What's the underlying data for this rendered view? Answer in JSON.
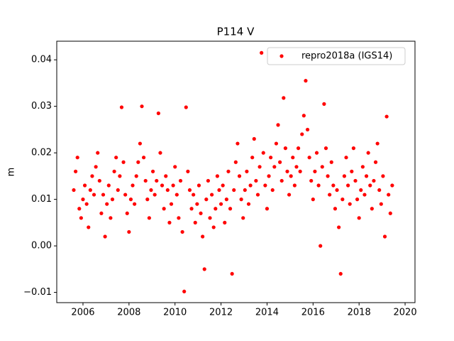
{
  "chart_data": {
    "type": "scatter",
    "title": "P114 V",
    "y_label": "m",
    "x": [
      2005.6,
      2005.68,
      2005.76,
      2005.84,
      2005.92,
      2006.0,
      2006.08,
      2006.16,
      2006.24,
      2006.32,
      2006.4,
      2006.48,
      2006.56,
      2006.64,
      2006.72,
      2006.8,
      2006.88,
      2006.96,
      2007.04,
      2007.12,
      2007.2,
      2007.28,
      2007.36,
      2007.44,
      2007.52,
      2007.6,
      2007.68,
      2007.76,
      2007.84,
      2007.92,
      2008.0,
      2008.08,
      2008.16,
      2008.24,
      2008.32,
      2008.4,
      2008.48,
      2008.56,
      2008.64,
      2008.72,
      2008.8,
      2008.88,
      2008.96,
      2009.04,
      2009.12,
      2009.2,
      2009.28,
      2009.36,
      2009.44,
      2009.52,
      2009.6,
      2009.68,
      2009.76,
      2009.84,
      2009.92,
      2010.0,
      2010.08,
      2010.16,
      2010.24,
      2010.32,
      2010.4,
      2010.48,
      2010.56,
      2010.64,
      2010.72,
      2010.8,
      2010.88,
      2010.96,
      2011.04,
      2011.12,
      2011.2,
      2011.28,
      2011.36,
      2011.44,
      2011.52,
      2011.6,
      2011.68,
      2011.76,
      2011.84,
      2011.92,
      2012.0,
      2012.08,
      2012.16,
      2012.24,
      2012.32,
      2012.4,
      2012.48,
      2012.56,
      2012.64,
      2012.72,
      2012.8,
      2012.88,
      2012.96,
      2013.04,
      2013.12,
      2013.2,
      2013.28,
      2013.36,
      2013.44,
      2013.52,
      2013.6,
      2013.68,
      2013.76,
      2013.84,
      2013.92,
      2014.0,
      2014.08,
      2014.16,
      2014.24,
      2014.32,
      2014.4,
      2014.48,
      2014.56,
      2014.64,
      2014.72,
      2014.8,
      2014.88,
      2014.96,
      2015.04,
      2015.12,
      2015.2,
      2015.28,
      2015.36,
      2015.44,
      2015.52,
      2015.6,
      2015.68,
      2015.76,
      2015.84,
      2015.92,
      2016.0,
      2016.08,
      2016.16,
      2016.24,
      2016.32,
      2016.4,
      2016.48,
      2016.56,
      2016.64,
      2016.72,
      2016.8,
      2016.88,
      2016.96,
      2017.04,
      2017.12,
      2017.2,
      2017.28,
      2017.36,
      2017.44,
      2017.52,
      2017.6,
      2017.68,
      2017.76,
      2017.84,
      2017.92,
      2018.0,
      2018.08,
      2018.16,
      2018.24,
      2018.32,
      2018.4,
      2018.48,
      2018.56,
      2018.64,
      2018.72,
      2018.8,
      2018.88,
      2018.96,
      2019.04,
      2019.12,
      2019.2,
      2019.28,
      2019.36,
      2019.44
    ],
    "series": [
      {
        "name": "repro2018a (IGS14)",
        "color": "#ff0000",
        "values": [
          0.012,
          0.016,
          0.019,
          0.008,
          0.006,
          0.01,
          0.013,
          0.009,
          0.004,
          0.012,
          0.015,
          0.011,
          0.017,
          0.02,
          0.014,
          0.007,
          0.011,
          0.002,
          0.009,
          0.013,
          0.006,
          0.01,
          0.016,
          0.019,
          0.012,
          0.015,
          0.0298,
          0.018,
          0.011,
          0.007,
          0.003,
          0.01,
          0.013,
          0.009,
          0.015,
          0.018,
          0.022,
          0.03,
          0.019,
          0.014,
          0.01,
          0.006,
          0.012,
          0.016,
          0.011,
          0.014,
          0.0285,
          0.02,
          0.013,
          0.008,
          0.015,
          0.012,
          0.005,
          0.009,
          0.013,
          0.017,
          0.011,
          0.006,
          0.014,
          0.003,
          -0.0098,
          0.0298,
          0.016,
          0.012,
          0.008,
          0.011,
          0.005,
          0.009,
          0.013,
          0.007,
          0.002,
          -0.005,
          0.01,
          0.014,
          0.006,
          0.011,
          0.004,
          0.008,
          0.015,
          0.012,
          0.009,
          0.013,
          0.005,
          0.01,
          0.016,
          0.008,
          -0.006,
          0.012,
          0.018,
          0.022,
          0.015,
          0.01,
          0.006,
          0.012,
          0.016,
          0.009,
          0.013,
          0.019,
          0.023,
          0.014,
          0.011,
          0.017,
          0.0415,
          0.02,
          0.013,
          0.008,
          0.015,
          0.019,
          0.012,
          0.017,
          0.022,
          0.026,
          0.018,
          0.014,
          0.0318,
          0.021,
          0.016,
          0.011,
          0.015,
          0.019,
          0.013,
          0.017,
          0.021,
          0.016,
          0.024,
          0.028,
          0.0355,
          0.025,
          0.019,
          0.014,
          0.01,
          0.016,
          0.02,
          0.013,
          0.0,
          0.017,
          0.0305,
          0.021,
          0.015,
          0.011,
          0.018,
          0.013,
          0.008,
          0.012,
          0.004,
          -0.006,
          0.01,
          0.015,
          0.019,
          0.013,
          0.009,
          0.016,
          0.021,
          0.014,
          0.01,
          0.006,
          0.012,
          0.017,
          0.011,
          0.015,
          0.02,
          0.013,
          0.008,
          0.014,
          0.018,
          0.022,
          0.012,
          0.009,
          0.015,
          0.002,
          0.0278,
          0.011,
          0.007,
          0.013
        ]
      }
    ],
    "xlim": [
      2004.86,
      2020.43
    ],
    "ylim": [
      -0.0122,
      0.044
    ],
    "xticks": [
      2006,
      2008,
      2010,
      2012,
      2014,
      2016,
      2018,
      2020
    ],
    "yticks": [
      {
        "value": -0.01,
        "label": "−0.01"
      },
      {
        "value": 0,
        "label": "0.00"
      },
      0.01,
      0.02,
      0.03,
      0.04
    ],
    "legend": "upper right",
    "grid": false
  }
}
